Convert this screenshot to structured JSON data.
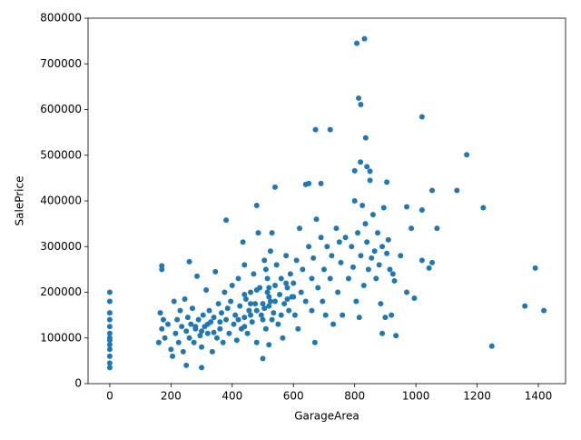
{
  "chart_data": {
    "type": "scatter",
    "x_label": "GarageArea",
    "y_label": "SalePrice",
    "color": "#1f77b4",
    "xlim": [
      -70.9,
      1488.9
    ],
    "ylim": [
      0,
      800000
    ],
    "xticks": [
      0,
      200,
      400,
      600,
      800,
      1000,
      1200,
      1400
    ],
    "yticks": [
      0,
      100000,
      200000,
      300000,
      400000,
      500000,
      600000,
      700000,
      800000
    ],
    "x": [
      0,
      0,
      0,
      0,
      0,
      0,
      0,
      0,
      0,
      0,
      0,
      0,
      0,
      160,
      165,
      170,
      175,
      180,
      190,
      200,
      205,
      210,
      215,
      220,
      225,
      230,
      235,
      240,
      245,
      250,
      250,
      255,
      260,
      265,
      270,
      275,
      280,
      285,
      290,
      295,
      300,
      300,
      305,
      310,
      315,
      320,
      325,
      330,
      335,
      340,
      345,
      350,
      355,
      360,
      365,
      370,
      375,
      380,
      385,
      390,
      395,
      400,
      405,
      410,
      415,
      420,
      425,
      430,
      435,
      440,
      440,
      445,
      450,
      455,
      460,
      465,
      470,
      475,
      480,
      485,
      480,
      490,
      495,
      500,
      505,
      510,
      515,
      520,
      525,
      530,
      500,
      505,
      510,
      515,
      520,
      525,
      530,
      535,
      540,
      545,
      550,
      555,
      560,
      565,
      570,
      576,
      580,
      585,
      590,
      595,
      600,
      605,
      610,
      615,
      620,
      625,
      630,
      640,
      650,
      660,
      660,
      665,
      670,
      675,
      680,
      690,
      695,
      700,
      705,
      710,
      720,
      725,
      730,
      740,
      745,
      750,
      755,
      760,
      770,
      780,
      790,
      795,
      800,
      805,
      810,
      815,
      820,
      825,
      830,
      835,
      840,
      845,
      850,
      855,
      860,
      865,
      870,
      875,
      880,
      885,
      890,
      895,
      900,
      905,
      910,
      915,
      920,
      925,
      930,
      935,
      807,
      832,
      813,
      820,
      1020,
      672,
      720,
      836,
      1166,
      819,
      840,
      850,
      800,
      1390,
      1356,
      1418,
      1248,
      1220,
      1134,
      1053,
      1069,
      1020,
      1020,
      1043,
      1053,
      985,
      970,
      905,
      690,
      650,
      640,
      540,
      380,
      170,
      170,
      260,
      995,
      970,
      950,
      890,
      280,
      300,
      320,
      340,
      360,
      420,
      440,
      460,
      480,
      500,
      520,
      540,
      560,
      580,
      600,
      440,
      460,
      480,
      520,
      576
    ],
    "values": [
      35000,
      45000,
      60000,
      75000,
      85000,
      95000,
      110000,
      125000,
      140000,
      200000,
      180000,
      155000,
      100000,
      90000,
      155000,
      120000,
      140000,
      100000,
      130000,
      75000,
      60000,
      180000,
      110000,
      140000,
      90000,
      160000,
      125000,
      70000,
      185000,
      40000,
      115000,
      145000,
      100000,
      130000,
      165000,
      90000,
      120000,
      235000,
      140000,
      105000,
      80000,
      35000,
      150000,
      125000,
      205000,
      110000,
      160000,
      135000,
      70000,
      145000,
      245000,
      100000,
      175000,
      120000,
      155000,
      90000,
      200000,
      140000,
      165000,
      110000,
      180000,
      215000,
      130000,
      150000,
      95000,
      230000,
      170000,
      120000,
      310000,
      145000,
      260000,
      185000,
      110000,
      160000,
      200000,
      135000,
      240000,
      175000,
      90000,
      330000,
      390000,
      210000,
      150000,
      175000,
      270000,
      120000,
      230000,
      190000,
      290000,
      140000,
      55000,
      165000,
      250000,
      200000,
      85000,
      180000,
      330000,
      155000,
      215000,
      260000,
      130000,
      195000,
      230000,
      100000,
      175000,
      280000,
      210000,
      160000,
      240000,
      190000,
      220000,
      150000,
      270000,
      120000,
      340000,
      200000,
      250000,
      180000,
      300000,
      230000,
      160000,
      275000,
      90000,
      360000,
      210000,
      320000,
      180000,
      250000,
      150000,
      300000,
      230000,
      280000,
      130000,
      340000,
      200000,
      310000,
      265000,
      150000,
      320000,
      230000,
      300000,
      255000,
      400000,
      180000,
      330000,
      145000,
      280000,
      390000,
      215000,
      350000,
      310000,
      250000,
      445000,
      275000,
      370000,
      290000,
      230000,
      330000,
      260000,
      175000,
      300000,
      385000,
      145000,
      285000,
      315000,
      250000,
      150000,
      240000,
      225000,
      105000,
      745000,
      755000,
      625000,
      611000,
      584000,
      556000,
      556000,
      538000,
      501000,
      485000,
      475000,
      465000,
      466000,
      253000,
      170000,
      160000,
      82000,
      385000,
      423000,
      423000,
      340000,
      380000,
      270000,
      253000,
      265000,
      340000,
      387000,
      441000,
      438000,
      438000,
      436000,
      430000,
      358000,
      258000,
      250000,
      267000,
      187000,
      200000,
      280000,
      110000,
      125000,
      115000,
      130000,
      112000,
      135000,
      140000,
      125000,
      150000,
      160000,
      140000,
      170000,
      180000,
      150000,
      185000,
      190000,
      195000,
      175000,
      205000,
      210000,
      220000
    ]
  }
}
